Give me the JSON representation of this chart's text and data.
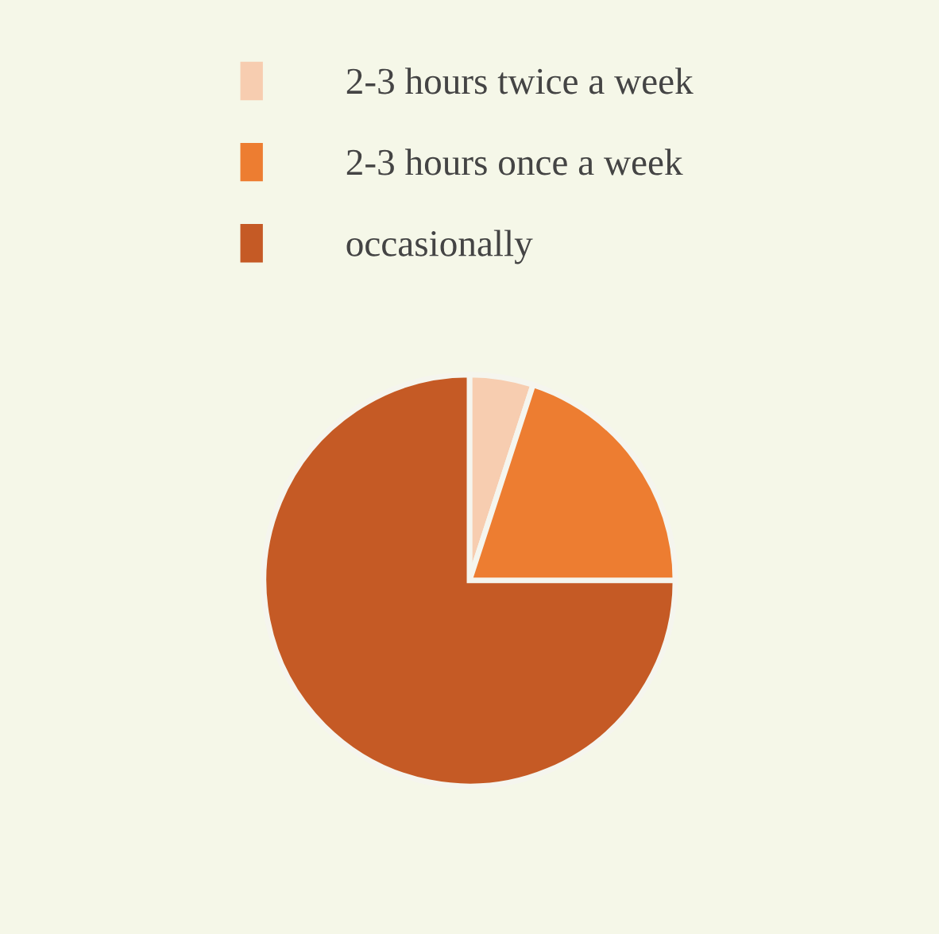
{
  "chart_data": {
    "type": "pie",
    "categories": [
      "2-3 hours twice a week",
      "2-3 hours once a week",
      "occasionally"
    ],
    "values": [
      5,
      20,
      75
    ],
    "colors": [
      "#f7cdb0",
      "#ed7d31",
      "#c55a25"
    ],
    "legend": "top"
  }
}
